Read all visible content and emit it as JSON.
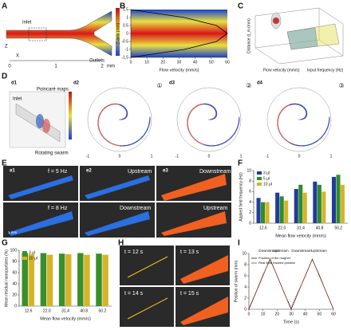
{
  "figure": {
    "a": {
      "label": "A",
      "inlet": "Inlet",
      "outlets": "Outlets",
      "scale_ticks": [
        0,
        1,
        2
      ],
      "unit": "mm",
      "axes": [
        "Z",
        "X"
      ]
    },
    "b": {
      "type": "line",
      "label": "B",
      "xlabel": "Flow velocity (mm/s)",
      "ylabel": "Z-axis (mm)",
      "x": [
        0,
        33.3,
        53.3,
        60,
        53.3,
        33.3,
        0
      ],
      "values": [
        -1.5,
        -1,
        -0.5,
        0,
        0.5,
        1,
        1.5
      ],
      "color": "#000000",
      "xlim": [
        0,
        60
      ],
      "xticks": [
        0,
        10,
        20,
        30,
        40,
        50,
        60
      ],
      "ylim": [
        -1.5,
        1.5
      ],
      "yticks": [
        -1.5,
        -1,
        -0.5,
        0,
        0.5,
        1,
        1.5
      ]
    },
    "c": {
      "label": "C",
      "xlabel": "Flow velocity (mm/s)",
      "ylabel": "Input frequency (Hz)",
      "zlabel": "Distance d_m (mm)"
    },
    "d": {
      "label": "D",
      "sub": [
        "d1",
        "d2",
        "d3",
        "d4"
      ],
      "inlet": "Inlet",
      "poincare": "Poincaré maps",
      "swarm": "Rotating swarm",
      "markers": [
        "①",
        "②",
        "③"
      ],
      "ticks": [
        -1,
        0,
        1
      ]
    },
    "e": {
      "label": "E",
      "sub": [
        "e1",
        "e2",
        "e3"
      ],
      "captions": [
        "f = 5 Hz",
        "Upstream",
        "Downstream",
        "f = 8 Hz",
        "Downstream",
        "Upstream"
      ],
      "scale": "1 mm"
    },
    "f": {
      "type": "bar",
      "label": "F",
      "xlabel": "Mean flow velocity (mm/s)",
      "ylabel": "Applied field frequency (Hz)",
      "categories": [
        "12.6",
        "22.0",
        "31.4",
        "40.8",
        "50.2"
      ],
      "series": [
        {
          "name": "3 μl",
          "color": "#1f3d99",
          "values": [
            4.8,
            5.8,
            6.5,
            7.9,
            8.8
          ]
        },
        {
          "name": "5 μl",
          "color": "#2e8b2e",
          "values": [
            4.0,
            5.1,
            7.3,
            7.3,
            9.2
          ]
        },
        {
          "name": "10 μl",
          "color": "#d4b52a",
          "values": [
            4.0,
            4.3,
            5.8,
            6.0,
            7.3
          ]
        }
      ],
      "ylim": [
        0,
        10
      ],
      "yticks": [
        0,
        2,
        4,
        6,
        8,
        10
      ]
    },
    "g": {
      "type": "bar",
      "label": "G",
      "xlabel": "Mean flow velocity (mm/s)",
      "ylabel": "Mean residual nanoparticles (%)",
      "categories": [
        "12.6",
        "22.0",
        "31.4",
        "40.8",
        "50.2"
      ],
      "series": [
        {
          "name": "3 μl",
          "color": "#3a8f2a",
          "values": [
            95,
            95,
            94,
            95,
            94
          ]
        },
        {
          "name": "10 μl",
          "color": "#d4b52a",
          "values": [
            93,
            92,
            93,
            92,
            92
          ]
        }
      ],
      "ylim": [
        0,
        100
      ],
      "yticks": [
        0,
        20,
        40,
        60,
        80,
        100
      ]
    },
    "h": {
      "label": "H",
      "captions": [
        "t = 12 s",
        "t = 13 s",
        "t = 14 s",
        "t = 15 s"
      ]
    },
    "i": {
      "type": "line",
      "label": "I",
      "xlabel": "Time (s)",
      "ylabel": "Position of swarm (mm)",
      "annotations": [
        "Downstream",
        "Upstream",
        "Downstream",
        "Upstream"
      ],
      "x": [
        0,
        5,
        10,
        15,
        20,
        25,
        30,
        35,
        40,
        45,
        50,
        55,
        60
      ],
      "series": [
        {
          "name": "Position of the magnet",
          "color": "#222222",
          "values": [
            0,
            3,
            6,
            9,
            6,
            3,
            0,
            3,
            6,
            9,
            6,
            3,
            0
          ]
        },
        {
          "name": "Real-time tracked position",
          "color": "#d02020",
          "values": [
            0.2,
            3.1,
            6.2,
            8.8,
            6.1,
            2.9,
            0.3,
            3.2,
            5.9,
            8.9,
            6.2,
            3.0,
            0.1
          ]
        }
      ],
      "xlim": [
        0,
        60
      ],
      "xticks": [
        0,
        10,
        20,
        30,
        40,
        50,
        60
      ],
      "ylim": [
        0,
        10
      ],
      "yticks": [
        0,
        2,
        4,
        6,
        8,
        10
      ]
    }
  }
}
